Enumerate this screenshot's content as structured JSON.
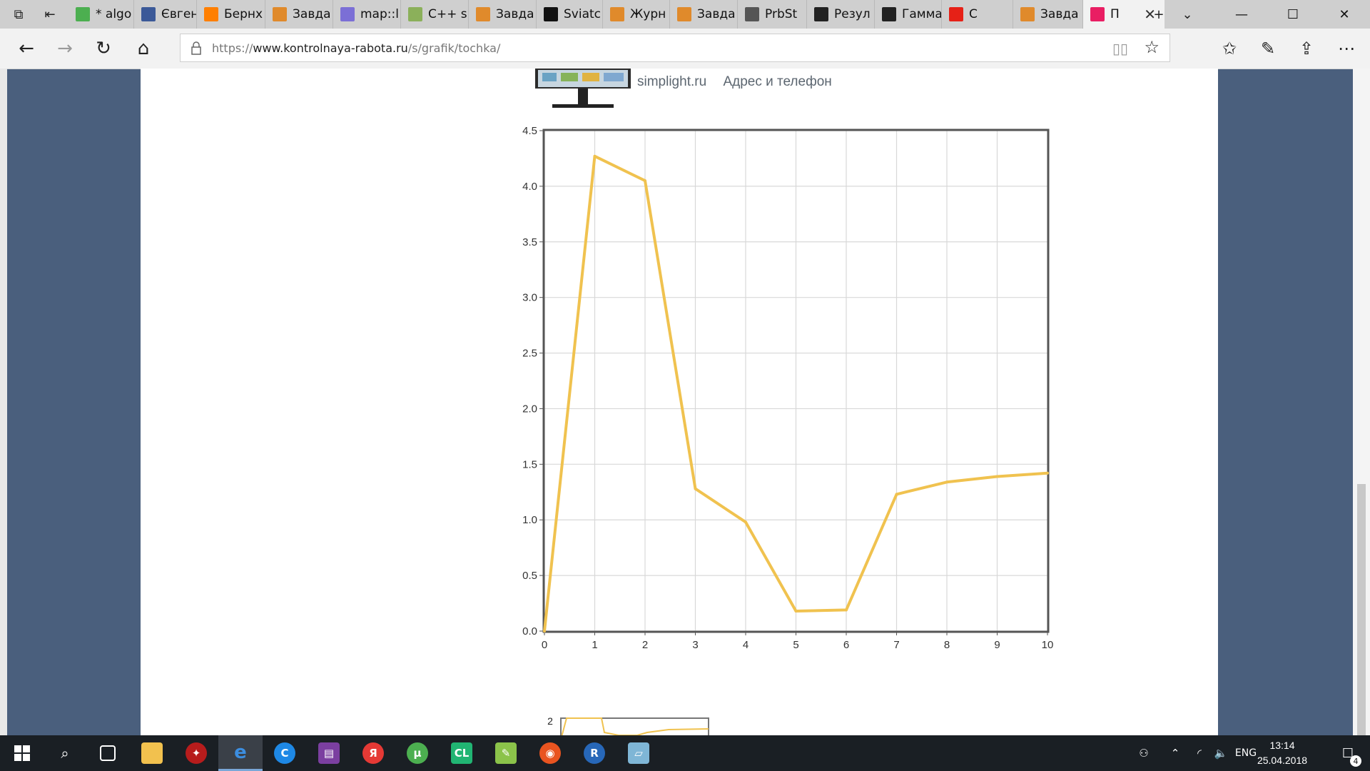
{
  "tabs": [
    {
      "label": "* algo",
      "icon": "spreadsheet-icon",
      "color": "#4caf50"
    },
    {
      "label": "Євген",
      "icon": "facebook-icon",
      "color": "#3b5998"
    },
    {
      "label": "Бернх",
      "icon": "olx-icon",
      "color": "#ff7f00"
    },
    {
      "label": "Завда",
      "icon": "mortarboard-icon",
      "color": "#e08a2b"
    },
    {
      "label": "map::l",
      "icon": "cpp-reference-icon",
      "color": "#7b6fd6"
    },
    {
      "label": "C++ s",
      "icon": "k-book-icon",
      "color": "#8bb05a"
    },
    {
      "label": "Завда",
      "icon": "mortarboard-icon",
      "color": "#e08a2b"
    },
    {
      "label": "Sviatc",
      "icon": "github-icon",
      "color": "#111111"
    },
    {
      "label": "Журн",
      "icon": "mortarboard-icon",
      "color": "#e08a2b"
    },
    {
      "label": "Завда",
      "icon": "mortarboard-icon",
      "color": "#e08a2b"
    },
    {
      "label": "PrbSt",
      "icon": "pdf-icon",
      "color": "#555555"
    },
    {
      "label": "Резул",
      "icon": "wikipedia-icon",
      "color": "#222222"
    },
    {
      "label": "Гамма",
      "icon": "wikipedia-icon",
      "color": "#222222"
    },
    {
      "label": "С",
      "icon": "youtube-icon",
      "color": "#e62117"
    },
    {
      "label": "Завда",
      "icon": "mortarboard-icon",
      "color": "#e08a2b"
    },
    {
      "label": "П",
      "icon": "colorful-dots-icon",
      "color": "#e91e63"
    }
  ],
  "address": {
    "prefix": "https://",
    "host": "www.kontrolnaya-rabota.ru",
    "path": "/s/grafik/tochka/"
  },
  "ad": {
    "site": "simplight.ru",
    "link": "Адрес и телефон"
  },
  "chart_data": {
    "type": "line",
    "title": "",
    "xlabel": "",
    "ylabel": "",
    "x": [
      0,
      1,
      2,
      3,
      4,
      5,
      6,
      7,
      8,
      9,
      10
    ],
    "series": [
      {
        "values": [
          0.0,
          4.27,
          4.05,
          1.28,
          0.98,
          0.18,
          0.19,
          1.23,
          1.34,
          1.39,
          1.42
        ]
      }
    ],
    "xlim": [
      0,
      10
    ],
    "ylim": [
      0,
      4.5
    ],
    "xticks": [
      "0",
      "1",
      "2",
      "3",
      "4",
      "5",
      "6",
      "7",
      "8",
      "9",
      "10"
    ],
    "yticks": [
      "0.0",
      "0.5",
      "1.0",
      "1.5",
      "2.0",
      "2.5",
      "3.0",
      "3.5",
      "4.0",
      "4.5"
    ],
    "grid": true,
    "line_color": "#f0c24f"
  },
  "mini_chart": {
    "ytick": "2"
  },
  "taskbar": {
    "language": "ENG",
    "time": "13:14",
    "date": "25.04.2018",
    "notifications": "4"
  }
}
